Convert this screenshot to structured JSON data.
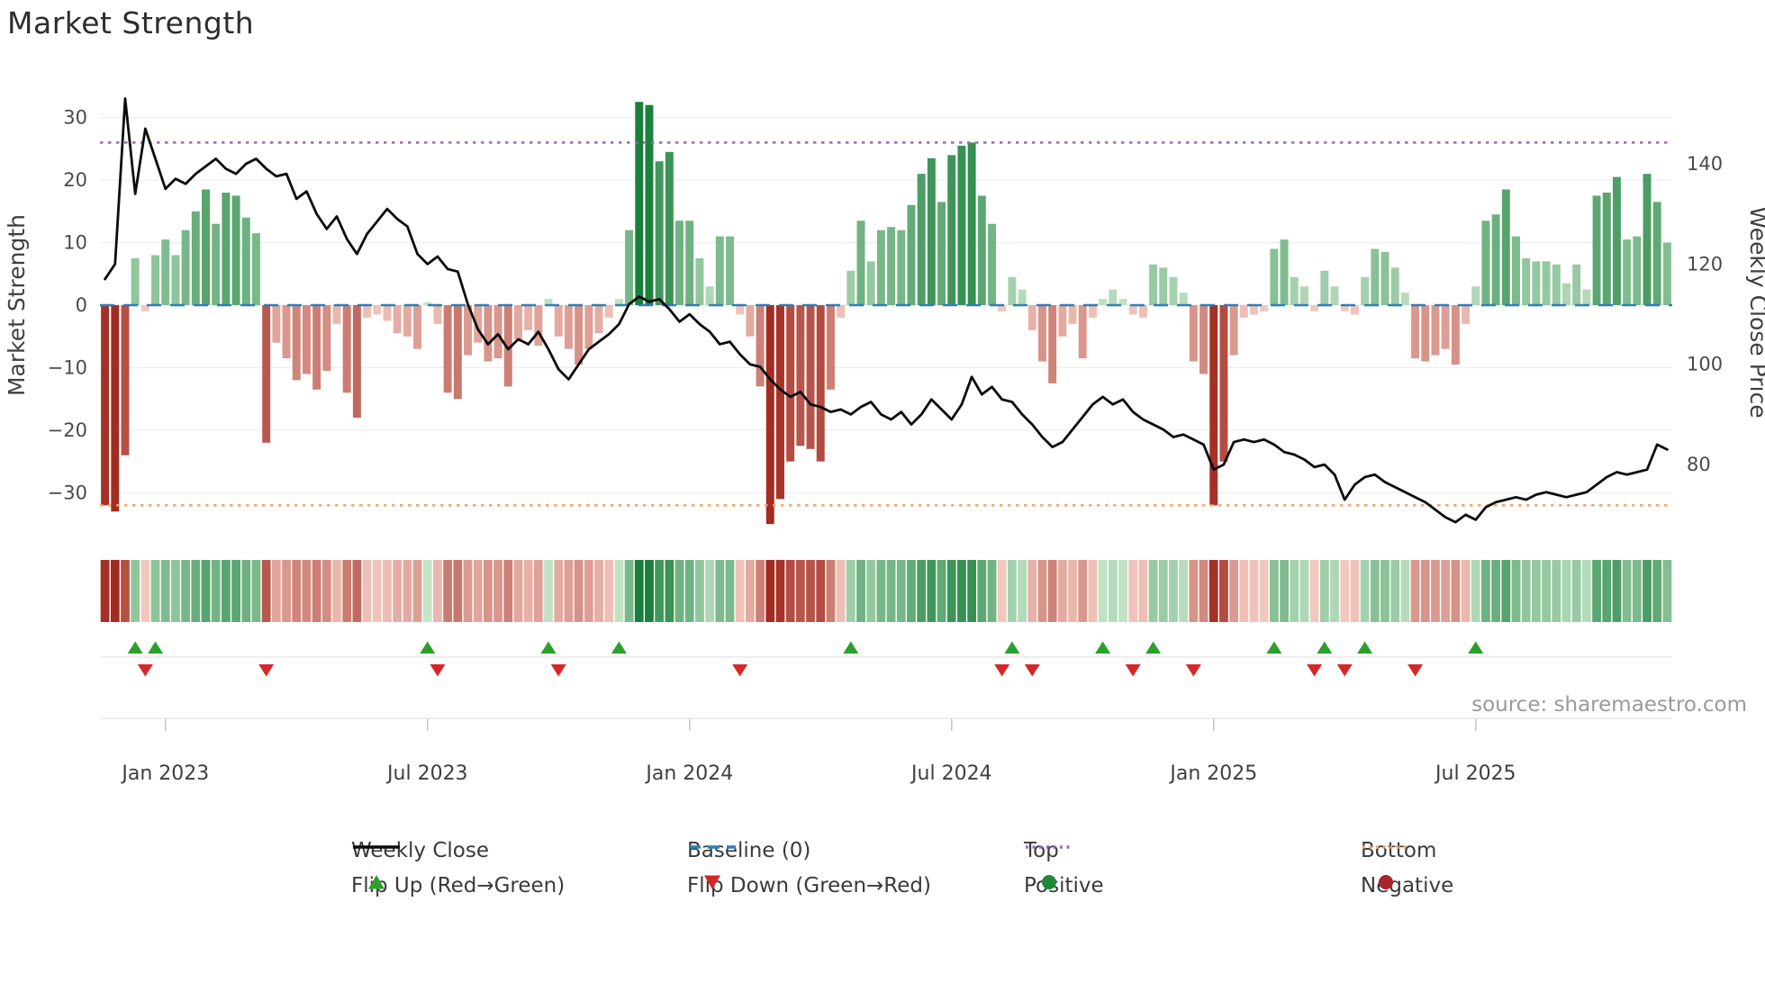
{
  "title": "Market Strength",
  "source": "source: sharemaestro.com",
  "axes": {
    "left_label": "Market Strength",
    "right_label": "Weekly Close Price",
    "left_ticks": [
      {
        "label": "30",
        "value": 30
      },
      {
        "label": "20",
        "value": 20
      },
      {
        "label": "10",
        "value": 10
      },
      {
        "label": "0",
        "value": 0
      },
      {
        "label": "−10",
        "value": -10
      },
      {
        "label": "−20",
        "value": -20
      },
      {
        "label": "−30",
        "value": -30
      }
    ],
    "right_ticks": [
      {
        "label": "140",
        "value": 140
      },
      {
        "label": "120",
        "value": 120
      },
      {
        "label": "100",
        "value": 100
      },
      {
        "label": "80",
        "value": 80
      }
    ],
    "x_ticks": [
      {
        "label": "Jan 2023",
        "week": 6
      },
      {
        "label": "Jul 2023",
        "week": 32
      },
      {
        "label": "Jan 2024",
        "week": 58
      },
      {
        "label": "Jul 2024",
        "week": 84
      },
      {
        "label": "Jan 2025",
        "week": 110
      },
      {
        "label": "Jul 2025",
        "week": 136
      }
    ]
  },
  "colors": {
    "line": "#0c0c0c",
    "baseline": "#2e7ebb",
    "top": "#9467bd",
    "bottom": "#f5a15c",
    "pos_light": "#cde9cf",
    "pos_dark": "#177e38",
    "neg_light": "#f7d4c9",
    "neg_dark": "#a32c22",
    "flip_up": "#2ca02c",
    "flip_down": "#d62728",
    "grid": "#ebebf3",
    "separator": "#e3e3e3",
    "tick_text": "#4a4a4a"
  },
  "legend": {
    "rows": [
      [
        {
          "glyph": "line",
          "dash": "solid",
          "color": "#0c0c0c",
          "label": "Weekly Close"
        },
        {
          "glyph": "line",
          "dash": "dashed",
          "color": "#2e7ebb",
          "label": "Baseline (0)"
        },
        {
          "glyph": "line",
          "dash": "dotted",
          "color": "#9467bd",
          "label": "Top"
        },
        {
          "glyph": "line",
          "dash": "dotted",
          "color": "#f5a15c",
          "label": "Bottom"
        }
      ],
      [
        {
          "glyph": "triangle-up",
          "color": "#2ca02c",
          "label": "Flip Up (Red→Green)"
        },
        {
          "glyph": "triangle-down",
          "color": "#d62728",
          "label": "Flip Down (Green→Red)"
        },
        {
          "glyph": "circle",
          "color": "#218739",
          "label": "Positive"
        },
        {
          "glyph": "circle",
          "color": "#ab2330",
          "label": "Negative"
        }
      ]
    ]
  },
  "chart_data": {
    "type": "bar+line",
    "title": "Market Strength",
    "x_unit": "week",
    "x_start": "Nov 2022",
    "x_end": "Oct 2025",
    "bar_series_name": "Market Strength",
    "line_series_name": "Weekly Close",
    "strength_axis": {
      "range": [
        -38,
        38
      ],
      "baseline": 0,
      "top_line": 26,
      "bottom_line": -32
    },
    "price_axis": {
      "range": [
        64.4,
        159.2
      ]
    },
    "strength": [
      -32,
      -33,
      -24,
      7.5,
      -1,
      8,
      10.5,
      8,
      12,
      15,
      18.5,
      13,
      18,
      17.5,
      14,
      11.5,
      -22,
      -6,
      -8.5,
      -12,
      -11,
      -13.5,
      -10.5,
      -3,
      -14,
      -18,
      -2,
      -1.5,
      -2.5,
      -4.5,
      -5,
      -7,
      0.5,
      -3,
      -14,
      -15,
      -8,
      -6,
      -9,
      -8.5,
      -13,
      -5.5,
      -4,
      -6.5,
      1,
      -5,
      -7,
      -9.5,
      -7,
      -4.5,
      -2,
      1,
      12,
      32.5,
      32,
      23,
      24.5,
      13.5,
      13.5,
      7.5,
      3,
      11,
      11,
      -1.5,
      -5,
      -13,
      -35,
      -31,
      -25,
      -22.5,
      -23,
      -25,
      -13.5,
      -2,
      5.5,
      13.5,
      7,
      12,
      12.5,
      12,
      16,
      21,
      23.5,
      16.5,
      24,
      25.5,
      26,
      17.5,
      13,
      -1,
      4.5,
      2.5,
      -4,
      -9,
      -12.5,
      -5,
      -3,
      -8.5,
      -2,
      1,
      2.5,
      1,
      -1.5,
      -2,
      6.5,
      6,
      4.5,
      2,
      -9,
      -11,
      -32,
      -25,
      -8,
      -2,
      -1.5,
      -1,
      9,
      10.5,
      4.5,
      3,
      -1,
      5.5,
      3,
      -1,
      -1.5,
      4.5,
      9,
      8.5,
      6,
      2,
      -8.5,
      -9,
      -8,
      -7,
      -9.5,
      -3,
      3,
      13.5,
      14.5,
      18.5,
      11,
      7.5,
      7,
      7,
      6.5,
      3.5,
      6.5,
      2.5,
      17.5,
      18,
      20.5,
      10.5,
      11,
      21,
      16.5,
      10
    ],
    "weekly_close": [
      117,
      120,
      153,
      134,
      147,
      141,
      135,
      137,
      136,
      138,
      139.5,
      141,
      139,
      138,
      140,
      141,
      139,
      137.5,
      138,
      133,
      134.5,
      130,
      127,
      129.5,
      125,
      122,
      126,
      128.5,
      131,
      129,
      127.5,
      122,
      120,
      121.5,
      119,
      118.5,
      112,
      107,
      104,
      106,
      103,
      105,
      104,
      106.5,
      103,
      99,
      97,
      100,
      103,
      104.5,
      106,
      108,
      112,
      113.5,
      112.5,
      113,
      111,
      108.5,
      110,
      108,
      106.5,
      104,
      104.5,
      102,
      100,
      99.5,
      97,
      95,
      93.5,
      94.5,
      92,
      91.5,
      90.5,
      91,
      90,
      91.5,
      92.5,
      90,
      89,
      90.5,
      88,
      90,
      93,
      91,
      89,
      92,
      97.5,
      94,
      95.5,
      93,
      92.5,
      90,
      88,
      85.5,
      83.5,
      84.5,
      87,
      89.5,
      92,
      93.5,
      92,
      93,
      90.5,
      89,
      88,
      87,
      85.5,
      86,
      85,
      84,
      79,
      80,
      84.5,
      85,
      84.5,
      85,
      84,
      82.5,
      82,
      81,
      79.5,
      80,
      78,
      73,
      76,
      77.5,
      78,
      76.5,
      75.5,
      74.5,
      73.5,
      72.5,
      71,
      69.5,
      68.5,
      70,
      69,
      71.5,
      72.5,
      73,
      73.5,
      73,
      74,
      74.5,
      74,
      73.5,
      74,
      74.5,
      76,
      77.5,
      78.5,
      78,
      78.5,
      79,
      84,
      83
    ]
  }
}
